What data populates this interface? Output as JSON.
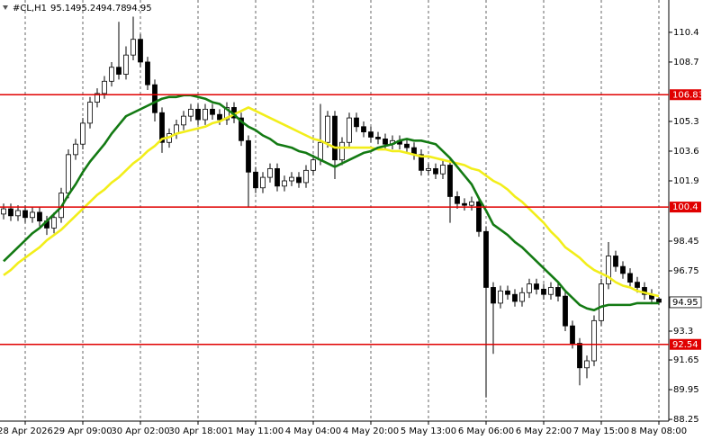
{
  "chart_data": {
    "type": "candlestick",
    "title": "#CL,H1",
    "categories": [
      null,
      null,
      null,
      "28 Apr 2026",
      null,
      null,
      null,
      null,
      null,
      null,
      null,
      "29 Apr 09:00",
      null,
      null,
      null,
      null,
      null,
      null,
      null,
      "30 Apr 02:00",
      null,
      null,
      null,
      null,
      null,
      null,
      null,
      "30 Apr 18:00",
      null,
      null,
      null,
      null,
      null,
      null,
      null,
      "1 May 11:00",
      null,
      null,
      null,
      null,
      null,
      null,
      null,
      "4 May 04:00",
      null,
      null,
      null,
      null,
      null,
      null,
      null,
      "4 May 20:00",
      null,
      null,
      null,
      null,
      null,
      null,
      null,
      "5 May 13:00",
      null,
      null,
      null,
      null,
      null,
      null,
      null,
      "6 May 06:00",
      null,
      null,
      null,
      null,
      null,
      null,
      null,
      "6 May 22:00",
      null,
      null,
      null,
      null,
      null,
      null,
      null,
      "7 May 15:00",
      null,
      null,
      null,
      null,
      null,
      null,
      null,
      "8 May 08:00"
    ],
    "open": [
      100.0,
      100.3,
      99.9,
      100.2,
      99.8,
      100.1,
      99.6,
      99.2,
      99.8,
      101.2,
      103.4,
      104.0,
      105.2,
      106.4,
      106.9,
      107.6,
      108.4,
      108.0,
      109.1,
      110.0,
      108.7,
      107.4,
      105.8,
      104.1,
      104.6,
      105.1,
      105.6,
      106.0,
      105.4,
      106.0,
      105.7,
      105.4,
      106.1,
      105.5,
      104.2,
      102.4,
      101.5,
      102.1,
      102.6,
      101.6,
      101.9,
      102.1,
      101.8,
      102.5,
      103.1,
      104.1,
      105.6,
      103.1,
      104.1,
      105.5,
      105.0,
      104.7,
      104.4,
      104.3,
      104.0,
      104.2,
      104.0,
      103.8,
      103.4,
      102.5,
      102.6,
      102.3,
      102.8,
      101.0,
      100.6,
      100.5,
      100.7,
      99.0,
      95.8,
      94.9,
      95.6,
      95.4,
      95.0,
      95.5,
      96.0,
      95.7,
      95.4,
      95.8,
      95.3,
      93.6,
      92.6,
      91.2,
      91.6,
      93.9,
      96.0,
      97.6,
      97.0,
      96.6,
      96.1,
      95.8,
      95.4,
      95.14
    ],
    "high": [
      100.6,
      100.6,
      100.5,
      100.5,
      100.4,
      100.4,
      99.9,
      100.1,
      101.5,
      103.7,
      104.3,
      105.5,
      106.7,
      107.2,
      107.9,
      108.7,
      111.0,
      109.6,
      111.3,
      110.3,
      109.0,
      107.7,
      106.1,
      104.9,
      105.4,
      105.9,
      106.3,
      106.3,
      106.3,
      106.3,
      106.0,
      106.4,
      106.4,
      105.8,
      104.5,
      102.7,
      102.4,
      102.9,
      102.9,
      102.2,
      102.4,
      102.4,
      102.8,
      103.4,
      106.3,
      105.9,
      105.9,
      104.4,
      105.8,
      105.8,
      105.3,
      105.0,
      104.7,
      104.6,
      104.5,
      104.5,
      104.3,
      104.1,
      103.7,
      102.9,
      102.9,
      103.1,
      103.1,
      101.3,
      100.9,
      101.0,
      101.0,
      99.3,
      96.1,
      95.9,
      95.9,
      95.7,
      95.8,
      96.3,
      96.3,
      96.0,
      96.1,
      96.1,
      95.6,
      93.9,
      92.9,
      91.9,
      94.2,
      96.3,
      98.4,
      97.9,
      97.3,
      96.9,
      96.4,
      96.1,
      95.7,
      95.24
    ],
    "low": [
      99.7,
      99.6,
      99.6,
      99.5,
      99.5,
      99.3,
      98.8,
      98.9,
      99.5,
      100.9,
      103.1,
      103.7,
      104.9,
      106.1,
      106.6,
      107.3,
      107.7,
      107.7,
      108.8,
      108.4,
      107.1,
      105.3,
      103.5,
      103.8,
      104.3,
      104.8,
      105.3,
      105.1,
      105.1,
      105.4,
      105.1,
      105.1,
      105.2,
      103.9,
      100.4,
      101.2,
      101.2,
      101.8,
      101.3,
      101.3,
      101.6,
      101.5,
      101.5,
      102.2,
      102.8,
      103.8,
      102.0,
      102.8,
      103.8,
      104.7,
      104.4,
      104.1,
      104.0,
      103.7,
      103.7,
      103.7,
      103.5,
      103.1,
      102.2,
      102.2,
      102.0,
      102.0,
      99.5,
      100.3,
      100.2,
      100.2,
      98.7,
      89.5,
      92.0,
      94.6,
      95.1,
      94.7,
      94.7,
      95.2,
      95.4,
      95.1,
      95.1,
      95.0,
      93.3,
      92.3,
      90.2,
      90.6,
      91.3,
      93.6,
      95.7,
      96.7,
      96.3,
      95.8,
      95.5,
      95.1,
      94.84,
      94.78
    ],
    "close": [
      100.3,
      99.9,
      100.2,
      99.8,
      100.1,
      99.6,
      99.2,
      99.8,
      101.2,
      103.4,
      104.0,
      105.2,
      106.4,
      106.9,
      107.6,
      108.4,
      108.0,
      109.1,
      110.0,
      108.7,
      107.4,
      105.8,
      104.1,
      104.6,
      105.1,
      105.6,
      106.0,
      105.4,
      106.0,
      105.7,
      105.4,
      106.1,
      105.5,
      104.2,
      102.4,
      101.5,
      102.1,
      102.6,
      101.6,
      101.9,
      102.1,
      101.8,
      102.5,
      103.1,
      104.1,
      105.6,
      103.1,
      104.1,
      105.5,
      105.0,
      104.7,
      104.4,
      104.3,
      104.0,
      104.2,
      104.0,
      103.8,
      103.4,
      102.5,
      102.6,
      102.3,
      102.8,
      101.0,
      100.6,
      100.5,
      100.7,
      99.0,
      95.8,
      94.9,
      95.6,
      95.4,
      95.0,
      95.5,
      96.0,
      95.7,
      95.4,
      95.8,
      95.3,
      93.6,
      92.6,
      91.2,
      91.6,
      93.9,
      96.0,
      97.6,
      97.0,
      96.6,
      96.1,
      95.8,
      95.4,
      95.14,
      94.95
    ],
    "up_color": "#ffffff",
    "down_color": "#000000",
    "edge_color": "#000000",
    "series": [
      {
        "color": "#f2ee1a",
        "values": [
          96.5,
          96.8,
          97.2,
          97.5,
          97.8,
          98.1,
          98.5,
          98.8,
          99.1,
          99.5,
          99.9,
          100.3,
          100.7,
          101.1,
          101.4,
          101.8,
          102.1,
          102.5,
          102.9,
          103.2,
          103.6,
          103.9,
          104.3,
          104.4,
          104.6,
          104.7,
          104.8,
          104.9,
          105.0,
          105.2,
          105.3,
          105.5,
          105.7,
          105.9,
          106.1,
          105.9,
          105.7,
          105.5,
          105.3,
          105.1,
          104.9,
          104.7,
          104.5,
          104.3,
          104.2,
          104.0,
          103.8,
          103.8,
          103.8,
          103.8,
          103.8,
          103.8,
          103.7,
          103.7,
          103.6,
          103.6,
          103.5,
          103.4,
          103.3,
          103.3,
          103.2,
          103.1,
          103.0,
          102.9,
          102.8,
          102.6,
          102.5,
          102.2,
          101.9,
          101.7,
          101.4,
          101.0,
          100.7,
          100.3,
          99.9,
          99.5,
          99.0,
          98.6,
          98.1,
          97.8,
          97.5,
          97.1,
          96.8,
          96.6,
          96.4,
          96.1,
          95.9,
          95.8,
          95.6,
          95.5,
          95.4,
          95.3
        ]
      },
      {
        "color": "#137a13",
        "values": [
          97.3,
          97.7,
          98.1,
          98.5,
          98.9,
          99.2,
          99.6,
          100.0,
          100.4,
          101.1,
          101.7,
          102.4,
          103.0,
          103.5,
          104.0,
          104.6,
          105.1,
          105.6,
          105.8,
          106.0,
          106.2,
          106.4,
          106.6,
          106.7,
          106.7,
          106.8,
          106.8,
          106.7,
          106.6,
          106.4,
          106.3,
          106.0,
          105.7,
          105.3,
          105.0,
          104.8,
          104.5,
          104.3,
          104.0,
          103.9,
          103.8,
          103.6,
          103.5,
          103.3,
          103.1,
          102.9,
          102.7,
          102.9,
          103.1,
          103.3,
          103.5,
          103.6,
          103.8,
          103.9,
          104.0,
          104.2,
          104.3,
          104.2,
          104.2,
          104.1,
          104.0,
          103.6,
          103.2,
          102.7,
          102.2,
          101.7,
          100.9,
          100.2,
          99.4,
          99.1,
          98.8,
          98.4,
          98.1,
          97.7,
          97.3,
          96.9,
          96.5,
          96.1,
          95.6,
          95.2,
          94.8,
          94.6,
          94.5,
          94.7,
          94.8,
          94.8,
          94.8,
          94.8,
          94.9,
          94.9,
          94.9,
          94.9
        ]
      }
    ],
    "levels": [
      {
        "value": 106.83,
        "color": "#e00000"
      },
      {
        "value": 100.4,
        "color": "#e00000"
      },
      {
        "value": 92.54,
        "color": "#e00000"
      }
    ],
    "ylim": [
      88.15,
      112.25
    ],
    "yticks": [
      110.4,
      108.7,
      105.3,
      103.6,
      101.9,
      98.45,
      96.75,
      93.3,
      91.65,
      89.95,
      88.25
    ],
    "grid": true
  }
}
